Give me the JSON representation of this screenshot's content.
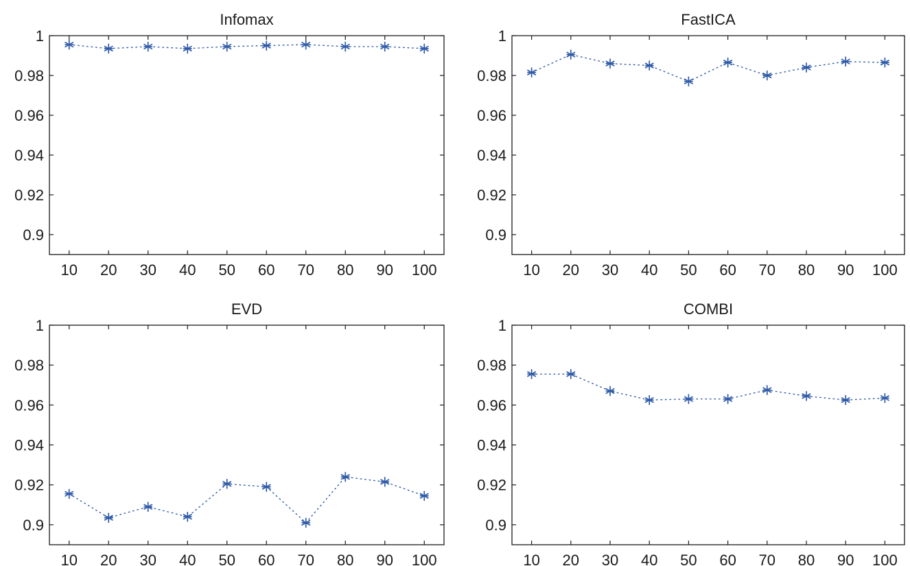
{
  "chart_data": [
    {
      "type": "line",
      "title": "Infomax",
      "x": [
        10,
        20,
        30,
        40,
        50,
        60,
        70,
        80,
        90,
        100
      ],
      "y": [
        0.9955,
        0.9935,
        0.9945,
        0.9935,
        0.9945,
        0.995,
        0.9955,
        0.9945,
        0.9945,
        0.9935
      ],
      "xticks": [
        "10",
        "20",
        "30",
        "40",
        "50",
        "60",
        "70",
        "80",
        "90",
        "100"
      ],
      "yticks": [
        "0.9",
        "0.92",
        "0.94",
        "0.96",
        "0.98",
        "1"
      ],
      "xlim": [
        5,
        105
      ],
      "ylim": [
        0.89,
        1.0
      ],
      "marker": "asterisk",
      "line_style": "dotted",
      "color": "#2e5aa8"
    },
    {
      "type": "line",
      "title": "FastICA",
      "x": [
        10,
        20,
        30,
        40,
        50,
        60,
        70,
        80,
        90,
        100
      ],
      "y": [
        0.9815,
        0.9905,
        0.986,
        0.985,
        0.977,
        0.9865,
        0.98,
        0.984,
        0.987,
        0.9865
      ],
      "xticks": [
        "10",
        "20",
        "30",
        "40",
        "50",
        "60",
        "70",
        "80",
        "90",
        "100"
      ],
      "yticks": [
        "0.9",
        "0.92",
        "0.94",
        "0.96",
        "0.98",
        "1"
      ],
      "xlim": [
        5,
        105
      ],
      "ylim": [
        0.89,
        1.0
      ],
      "marker": "asterisk",
      "line_style": "dotted",
      "color": "#2e5aa8"
    },
    {
      "type": "line",
      "title": "EVD",
      "x": [
        10,
        20,
        30,
        40,
        50,
        60,
        70,
        80,
        90,
        100
      ],
      "y": [
        0.9155,
        0.9035,
        0.909,
        0.904,
        0.9205,
        0.919,
        0.901,
        0.924,
        0.9215,
        0.9145
      ],
      "xticks": [
        "10",
        "20",
        "30",
        "40",
        "50",
        "60",
        "70",
        "80",
        "90",
        "100"
      ],
      "yticks": [
        "0.9",
        "0.92",
        "0.94",
        "0.96",
        "0.98",
        "1"
      ],
      "xlim": [
        5,
        105
      ],
      "ylim": [
        0.89,
        1.0
      ],
      "marker": "asterisk",
      "line_style": "dotted",
      "color": "#2e5aa8"
    },
    {
      "type": "line",
      "title": "COMBI",
      "x": [
        10,
        20,
        30,
        40,
        50,
        60,
        70,
        80,
        90,
        100
      ],
      "y": [
        0.9755,
        0.9755,
        0.967,
        0.9625,
        0.963,
        0.963,
        0.9675,
        0.9645,
        0.9625,
        0.9635
      ],
      "xticks": [
        "10",
        "20",
        "30",
        "40",
        "50",
        "60",
        "70",
        "80",
        "90",
        "100"
      ],
      "yticks": [
        "0.9",
        "0.92",
        "0.94",
        "0.96",
        "0.98",
        "1"
      ],
      "xlim": [
        5,
        105
      ],
      "ylim": [
        0.89,
        1.0
      ],
      "marker": "asterisk",
      "line_style": "dotted",
      "color": "#2e5aa8"
    }
  ]
}
